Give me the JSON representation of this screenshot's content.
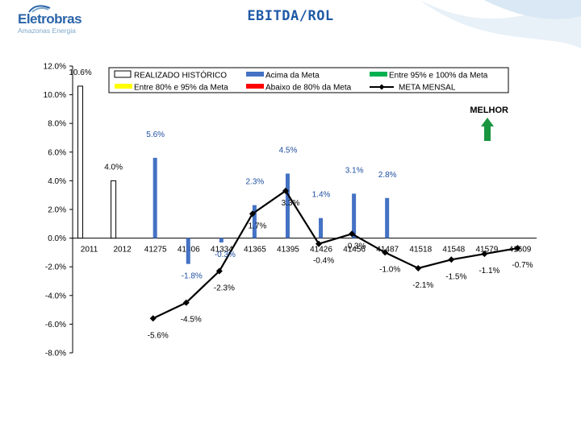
{
  "page": {
    "title": "EBITDA/ROL",
    "logo_word": "Eletrobras",
    "logo_sub": "Amazonas Energia",
    "melhor": "MELHOR"
  },
  "colors": {
    "historico": "#ffffff",
    "acima_meta": "#4472c4",
    "entre_95_100": "#00b050",
    "entre_80_95": "#ffff00",
    "abaixo_80": "#ff0000",
    "meta_line": "#000000",
    "arrow": "#1a9641",
    "title": "#1f5aa6"
  },
  "chart_data": {
    "type": "bar",
    "title": "EBITDA/ROL",
    "ylim": [
      -8.0,
      12.0
    ],
    "yticks": [
      "12.0%",
      "10.0%",
      "8.0%",
      "6.0%",
      "4.0%",
      "2.0%",
      "0.0%",
      "-2.0%",
      "-4.0%",
      "-6.0%",
      "-8.0%"
    ],
    "ytick_values": [
      12,
      10,
      8,
      6,
      4,
      2,
      0,
      -2,
      -4,
      -6,
      -8
    ],
    "categories": [
      "2011",
      "2012",
      "41275",
      "41306",
      "41334",
      "41365",
      "41395",
      "41426",
      "41456",
      "41487",
      "41518",
      "41548",
      "41579",
      "41609"
    ],
    "legend": [
      {
        "name": "REALIZADO HISTÓRICO",
        "color_key": "historico",
        "kind": "box"
      },
      {
        "name": "Acima da Meta",
        "color_key": "acima_meta",
        "kind": "bar"
      },
      {
        "name": "Entre 95% e 100% da Meta",
        "color_key": "entre_95_100",
        "kind": "bar"
      },
      {
        "name": "Entre 80% e 95% da Meta",
        "color_key": "entre_80_95",
        "kind": "bar"
      },
      {
        "name": "Abaixo de 80% da Meta",
        "color_key": "abaixo_80",
        "kind": "bar"
      },
      {
        "name": "META MENSAL",
        "color_key": "meta_line",
        "kind": "line"
      }
    ],
    "series": [
      {
        "name": "REALIZADO HISTÓRICO",
        "values": [
          10.6,
          4.0,
          null,
          null,
          null,
          null,
          null,
          null,
          null,
          null,
          null,
          null,
          null,
          null
        ],
        "labels": [
          "10.6%",
          "4.0%",
          "",
          "",
          "",
          "",
          "",
          "",
          "",
          "",
          "",
          "",
          "",
          ""
        ]
      },
      {
        "name": "Acima da Meta",
        "values": [
          null,
          null,
          5.6,
          -1.8,
          -0.3,
          2.3,
          4.5,
          1.4,
          3.1,
          2.8,
          null,
          null,
          null,
          null
        ],
        "labels": [
          "",
          "",
          "5.6%",
          "-1.8%",
          "-0.3%",
          "2.3%",
          "4.5%",
          "1.4%",
          "3.1%",
          "2.8%",
          "",
          "",
          "",
          ""
        ]
      },
      {
        "name": "META MENSAL",
        "values": [
          null,
          null,
          -5.6,
          -4.5,
          -2.3,
          1.7,
          3.3,
          -0.4,
          0.3,
          -1.0,
          -2.1,
          -1.5,
          -1.1,
          -0.7
        ],
        "labels": [
          "",
          "",
          "-5.6%",
          "-4.5%",
          "-2.3%",
          "1.7%",
          "3.3%",
          "-0.4%",
          "0.3%",
          "-1.0%",
          "-2.1%",
          "-1.5%",
          "-1.1%",
          "-0.7%"
        ]
      }
    ]
  }
}
